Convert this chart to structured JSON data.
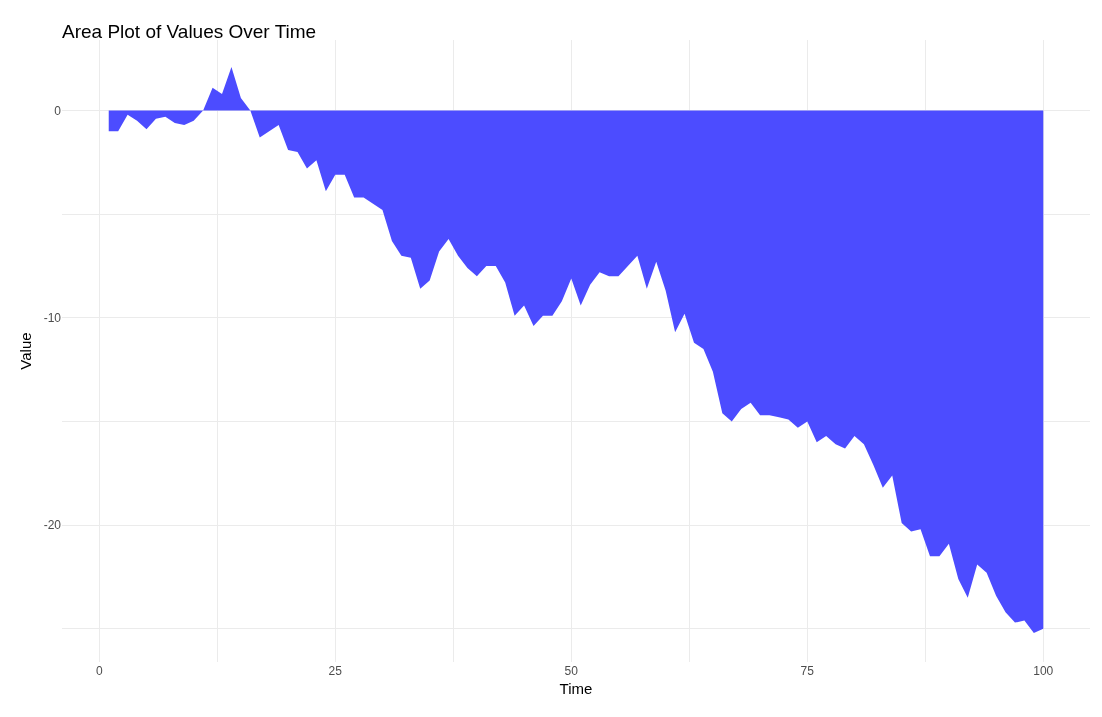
{
  "chart_data": {
    "type": "area",
    "title": "Area Plot of Values Over Time",
    "xlabel": "Time",
    "ylabel": "Value",
    "x": [
      1,
      2,
      3,
      4,
      5,
      6,
      7,
      8,
      9,
      10,
      11,
      12,
      13,
      14,
      15,
      16,
      17,
      18,
      19,
      20,
      21,
      22,
      23,
      24,
      25,
      26,
      27,
      28,
      29,
      30,
      31,
      32,
      33,
      34,
      35,
      36,
      37,
      38,
      39,
      40,
      41,
      42,
      43,
      44,
      45,
      46,
      47,
      48,
      49,
      50,
      51,
      52,
      53,
      54,
      55,
      56,
      57,
      58,
      59,
      60,
      61,
      62,
      63,
      64,
      65,
      66,
      67,
      68,
      69,
      70,
      71,
      72,
      73,
      74,
      75,
      76,
      77,
      78,
      79,
      80,
      81,
      82,
      83,
      84,
      85,
      86,
      87,
      88,
      89,
      90,
      91,
      92,
      93,
      94,
      95,
      96,
      97,
      98,
      99,
      100
    ],
    "values": [
      -1.0,
      -1.0,
      -0.2,
      -0.5,
      -0.9,
      -0.4,
      -0.3,
      -0.6,
      -0.7,
      -0.5,
      0.0,
      1.1,
      0.8,
      2.1,
      0.6,
      0.0,
      -1.3,
      -1.0,
      -0.7,
      -1.9,
      -2.0,
      -2.8,
      -2.4,
      -3.9,
      -3.1,
      -3.1,
      -4.2,
      -4.2,
      -4.5,
      -4.8,
      -6.3,
      -7.0,
      -7.1,
      -8.6,
      -8.2,
      -6.8,
      -6.2,
      -7.0,
      -7.6,
      -8.0,
      -7.5,
      -7.5,
      -8.3,
      -9.9,
      -9.4,
      -10.4,
      -9.9,
      -9.9,
      -9.2,
      -8.1,
      -9.4,
      -8.4,
      -7.8,
      -8.0,
      -8.0,
      -7.5,
      -7.0,
      -8.6,
      -7.3,
      -8.7,
      -10.7,
      -9.8,
      -11.2,
      -11.5,
      -12.6,
      -14.6,
      -15.0,
      -14.4,
      -14.1,
      -14.7,
      -14.7,
      -14.8,
      -14.9,
      -15.3,
      -15.0,
      -16.0,
      -15.7,
      -16.1,
      -16.3,
      -15.7,
      -16.1,
      -17.1,
      -18.2,
      -17.6,
      -19.9,
      -20.3,
      -20.2,
      -21.5,
      -21.5,
      -20.9,
      -22.6,
      -23.5,
      -21.9,
      -22.3,
      -23.4,
      -24.2,
      -24.7,
      -24.6,
      -25.2,
      -25.0
    ],
    "color": "#4c4cff",
    "xlim": [
      -3.95,
      104.95
    ],
    "ylim": [
      -26.6,
      3.4
    ],
    "xticks": [
      0,
      25,
      50,
      75,
      100,
      {
        "value": 12.5,
        "label": null
      },
      {
        "value": 37.5,
        "label": null
      },
      {
        "value": 62.5,
        "label": null
      },
      {
        "value": 87.5,
        "label": null
      }
    ],
    "yticks": [
      -20,
      -10,
      0,
      {
        "value": -25,
        "label": null
      },
      {
        "value": -15,
        "label": null
      },
      {
        "value": -5,
        "label": null
      }
    ],
    "grid": true
  }
}
